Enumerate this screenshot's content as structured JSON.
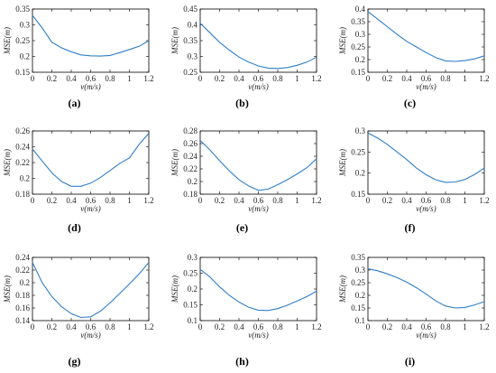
{
  "chart_data": [
    {
      "type": "line",
      "panel_label": "(a)",
      "xlabel": "v(m/s)",
      "ylabel": "MSE(m)",
      "xlim": [
        0,
        1.2
      ],
      "ylim": [
        0.15,
        0.35
      ],
      "xticks": [
        "0",
        "0.2",
        "0.4",
        "0.6",
        "0.8",
        "1",
        "1.2"
      ],
      "yticks": [
        "0.15",
        "0.2",
        "0.25",
        "0.3",
        "0.35"
      ],
      "x": [
        0,
        0.1,
        0.2,
        0.3,
        0.4,
        0.5,
        0.6,
        0.7,
        0.8,
        0.9,
        1.0,
        1.1,
        1.2
      ],
      "y": [
        0.33,
        0.29,
        0.245,
        0.227,
        0.215,
        0.205,
        0.202,
        0.201,
        0.203,
        0.212,
        0.222,
        0.232,
        0.25
      ],
      "color": "#2f7fc8"
    },
    {
      "type": "line",
      "panel_label": "(b)",
      "xlabel": "v(m/s)",
      "ylabel": "MSE(m)",
      "xlim": [
        0,
        1.2
      ],
      "ylim": [
        0.25,
        0.45
      ],
      "xticks": [
        "0",
        "0.2",
        "0.4",
        "0.6",
        "0.8",
        "1",
        "1.2"
      ],
      "yticks": [
        "0.25",
        "0.3",
        "0.35",
        "0.4",
        "0.45"
      ],
      "x": [
        0,
        0.1,
        0.2,
        0.3,
        0.4,
        0.5,
        0.6,
        0.7,
        0.8,
        0.9,
        1.0,
        1.1,
        1.2
      ],
      "y": [
        0.405,
        0.375,
        0.345,
        0.32,
        0.298,
        0.282,
        0.27,
        0.263,
        0.262,
        0.265,
        0.272,
        0.282,
        0.298
      ],
      "color": "#2f7fc8"
    },
    {
      "type": "line",
      "panel_label": "(c)",
      "xlabel": "v(m/s)",
      "ylabel": "MSE(m)",
      "xlim": [
        0,
        1.2
      ],
      "ylim": [
        0.15,
        0.4
      ],
      "xticks": [
        "0",
        "0.2",
        "0.4",
        "0.6",
        "0.8",
        "1",
        "1.2"
      ],
      "yticks": [
        "0.15",
        "0.2",
        "0.25",
        "0.3",
        "0.35",
        "0.4"
      ],
      "x": [
        0,
        0.1,
        0.2,
        0.3,
        0.4,
        0.5,
        0.6,
        0.7,
        0.8,
        0.9,
        1.0,
        1.1,
        1.2
      ],
      "y": [
        0.39,
        0.36,
        0.33,
        0.3,
        0.272,
        0.25,
        0.228,
        0.208,
        0.195,
        0.193,
        0.196,
        0.203,
        0.215
      ],
      "color": "#2f7fc8"
    },
    {
      "type": "line",
      "panel_label": "(d)",
      "xlabel": "v(m/s)",
      "ylabel": "MSE(m)",
      "xlim": [
        0,
        1.2
      ],
      "ylim": [
        0.18,
        0.26
      ],
      "xticks": [
        "0",
        "0.2",
        "0.4",
        "0.6",
        "0.8",
        "1",
        "1.2"
      ],
      "yticks": [
        "0.18",
        "0.2",
        "0.22",
        "0.24",
        "0.26"
      ],
      "x": [
        0,
        0.1,
        0.2,
        0.3,
        0.4,
        0.5,
        0.6,
        0.7,
        0.8,
        0.9,
        1.0,
        1.1,
        1.2
      ],
      "y": [
        0.237,
        0.222,
        0.207,
        0.196,
        0.19,
        0.19,
        0.194,
        0.201,
        0.21,
        0.219,
        0.226,
        0.243,
        0.257
      ],
      "color": "#2f7fc8"
    },
    {
      "type": "line",
      "panel_label": "(e)",
      "xlabel": "v(m/s)",
      "ylabel": "MSE(m)",
      "xlim": [
        0,
        1.2
      ],
      "ylim": [
        0.18,
        0.28
      ],
      "xticks": [
        "0",
        "0.2",
        "0.4",
        "0.6",
        "0.8",
        "1",
        "1.2"
      ],
      "yticks": [
        "0.18",
        "0.2",
        "0.22",
        "0.24",
        "0.26",
        "0.28"
      ],
      "x": [
        0,
        0.1,
        0.2,
        0.3,
        0.4,
        0.5,
        0.6,
        0.7,
        0.8,
        0.9,
        1.0,
        1.1,
        1.2
      ],
      "y": [
        0.265,
        0.25,
        0.233,
        0.217,
        0.203,
        0.193,
        0.186,
        0.188,
        0.195,
        0.203,
        0.212,
        0.222,
        0.236
      ],
      "color": "#2f7fc8"
    },
    {
      "type": "line",
      "panel_label": "(f)",
      "xlabel": "v(m/s)",
      "ylabel": "MSE(m)",
      "xlim": [
        0,
        1.2
      ],
      "ylim": [
        0.15,
        0.3
      ],
      "xticks": [
        "0",
        "0.2",
        "0.4",
        "0.6",
        "0.8",
        "1",
        "1.2"
      ],
      "yticks": [
        "0.15",
        "0.2",
        "0.25",
        "0.3"
      ],
      "x": [
        0,
        0.1,
        0.2,
        0.3,
        0.4,
        0.5,
        0.6,
        0.7,
        0.8,
        0.9,
        1.0,
        1.1,
        1.2
      ],
      "y": [
        0.295,
        0.283,
        0.268,
        0.25,
        0.232,
        0.212,
        0.196,
        0.184,
        0.178,
        0.179,
        0.185,
        0.197,
        0.212
      ],
      "color": "#2f7fc8"
    },
    {
      "type": "line",
      "panel_label": "(g)",
      "xlabel": "v(m/s)",
      "ylabel": "MSE(m)",
      "xlim": [
        0,
        1.2
      ],
      "ylim": [
        0.14,
        0.24
      ],
      "xticks": [
        "0",
        "0.2",
        "0.4",
        "0.6",
        "0.8",
        "1",
        "1.2"
      ],
      "yticks": [
        "0.14",
        "0.16",
        "0.18",
        "0.2",
        "0.22",
        "0.24"
      ],
      "x": [
        0,
        0.1,
        0.2,
        0.3,
        0.4,
        0.5,
        0.6,
        0.7,
        0.8,
        0.9,
        1.0,
        1.1,
        1.2
      ],
      "y": [
        0.232,
        0.2,
        0.178,
        0.162,
        0.151,
        0.145,
        0.146,
        0.155,
        0.168,
        0.183,
        0.198,
        0.214,
        0.232
      ],
      "color": "#2f7fc8"
    },
    {
      "type": "line",
      "panel_label": "(h)",
      "xlabel": "v(m/s)",
      "ylabel": "MSE(m)",
      "xlim": [
        0,
        1.2
      ],
      "ylim": [
        0.1,
        0.3
      ],
      "xticks": [
        "0",
        "0.2",
        "0.4",
        "0.6",
        "0.8",
        "1",
        "1.2"
      ],
      "yticks": [
        "0.1",
        "0.15",
        "0.2",
        "0.25",
        "0.3"
      ],
      "x": [
        0,
        0.1,
        0.2,
        0.3,
        0.4,
        0.5,
        0.6,
        0.7,
        0.8,
        0.9,
        1.0,
        1.1,
        1.2
      ],
      "y": [
        0.262,
        0.238,
        0.207,
        0.18,
        0.159,
        0.142,
        0.133,
        0.132,
        0.138,
        0.149,
        0.162,
        0.176,
        0.193
      ],
      "color": "#2f7fc8"
    },
    {
      "type": "line",
      "panel_label": "(i)",
      "xlabel": "v(m/s)",
      "ylabel": "MSE(m)",
      "xlim": [
        0,
        1.2
      ],
      "ylim": [
        0.1,
        0.35
      ],
      "xticks": [
        "0",
        "0.2",
        "0.4",
        "0.6",
        "0.8",
        "1",
        "1.2"
      ],
      "yticks": [
        "0.1",
        "0.15",
        "0.2",
        "0.25",
        "0.3",
        "0.35"
      ],
      "x": [
        0,
        0.1,
        0.2,
        0.3,
        0.4,
        0.5,
        0.6,
        0.7,
        0.8,
        0.9,
        1.0,
        1.1,
        1.2
      ],
      "y": [
        0.305,
        0.297,
        0.285,
        0.27,
        0.252,
        0.23,
        0.205,
        0.178,
        0.158,
        0.15,
        0.152,
        0.162,
        0.175
      ],
      "color": "#2f7fc8"
    }
  ]
}
